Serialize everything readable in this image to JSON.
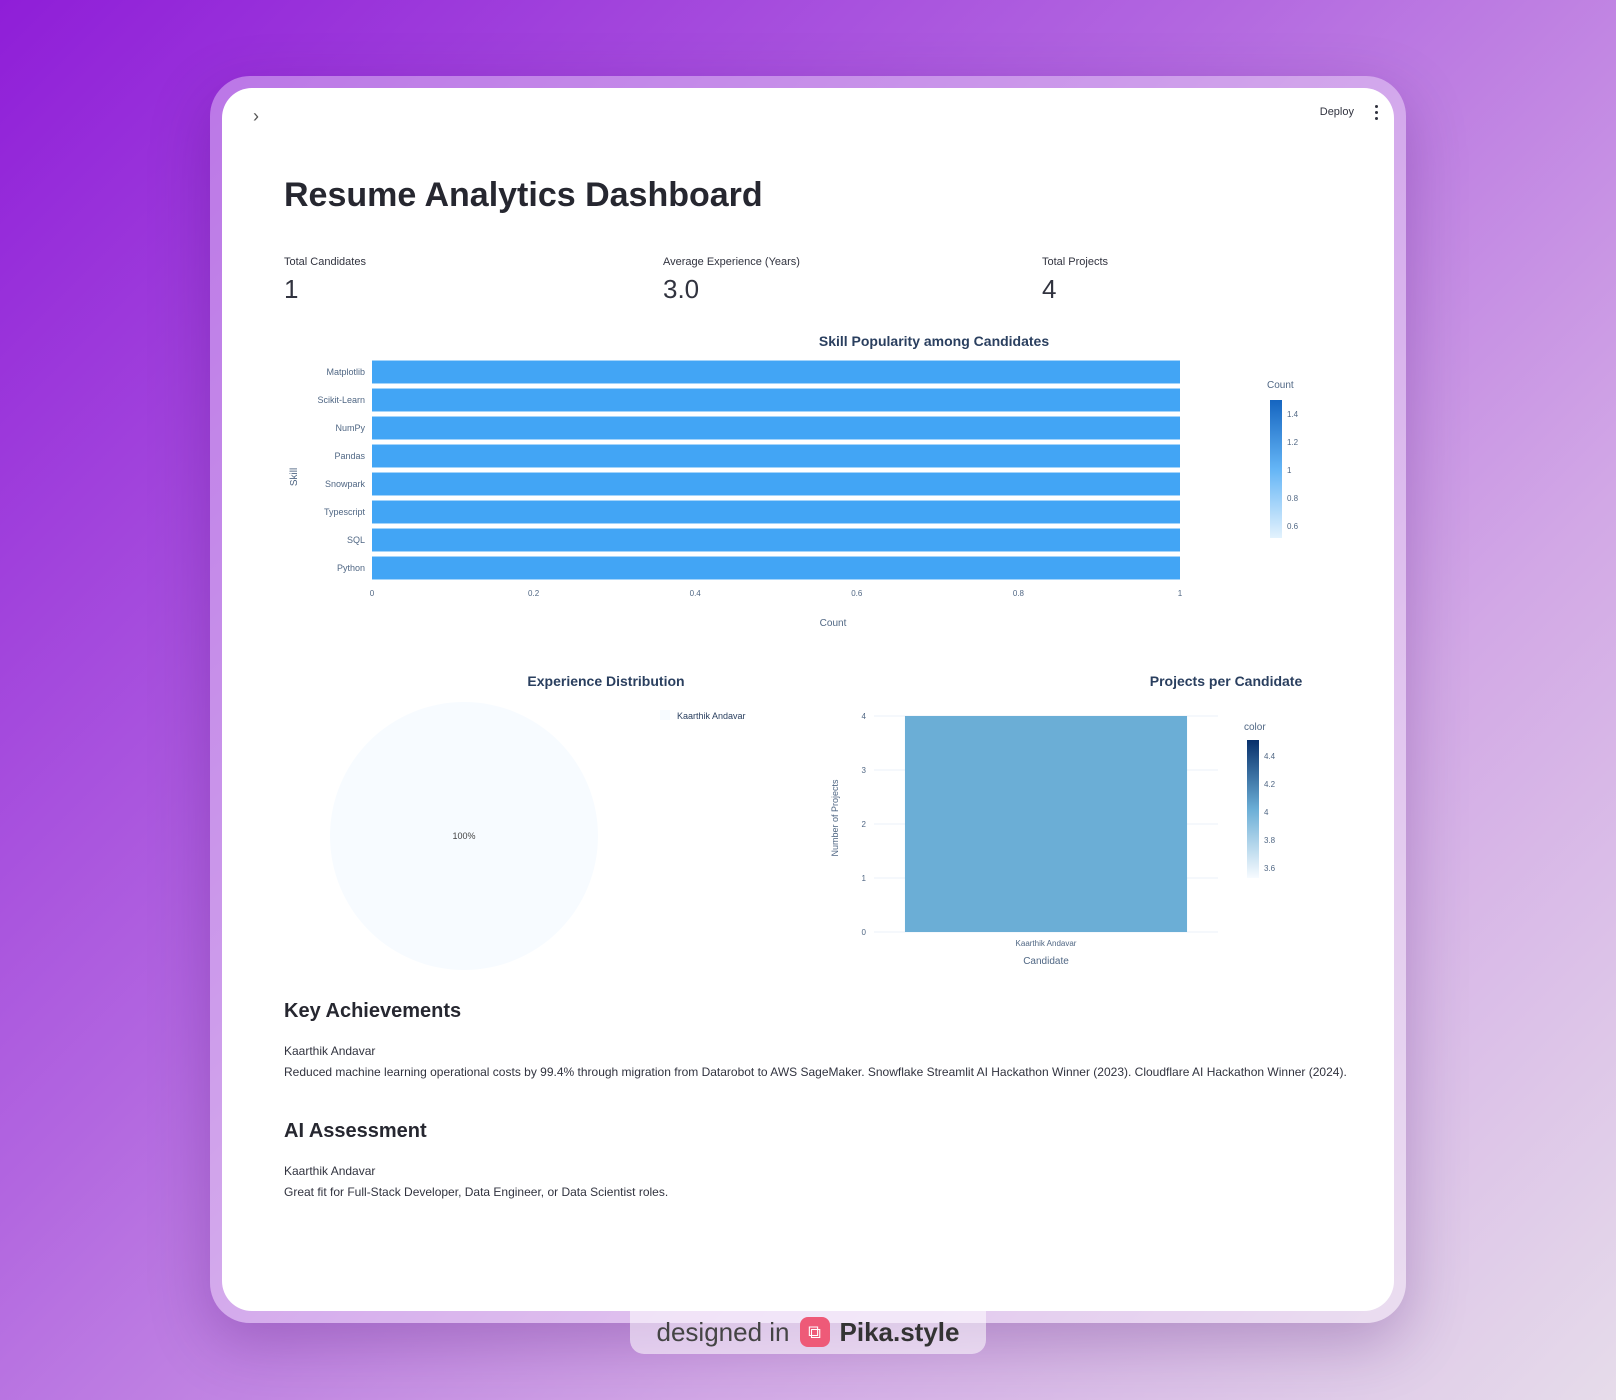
{
  "header": {
    "toggle_glyph": "›",
    "deploy_label": "Deploy",
    "menu_icon": "kebab-menu-icon"
  },
  "page": {
    "title": "Resume Analytics Dashboard"
  },
  "metrics": [
    {
      "label": "Total Candidates",
      "value": "1"
    },
    {
      "label": "Average Experience (Years)",
      "value": "3.0"
    },
    {
      "label": "Total Projects",
      "value": "4"
    }
  ],
  "skill_chart": {
    "title": "Skill Popularity among Candidates",
    "xlabel": "Count",
    "ylabel": "Skill",
    "colorbar_title": "Count",
    "colorbar_ticks": [
      "1.4",
      "1.2",
      "1",
      "0.8",
      "0.6"
    ],
    "x_ticks": [
      "0",
      "0.2",
      "0.4",
      "0.6",
      "0.8",
      "1"
    ]
  },
  "experience_chart": {
    "title": "Experience Distribution",
    "slice_label": "100%",
    "legend_label": "Kaarthik Andavar"
  },
  "projects_chart": {
    "title": "Projects per Candidate",
    "xlabel": "Candidate",
    "ylabel": "Number of Projects",
    "colorbar_title": "color",
    "colorbar_ticks": [
      "4.4",
      "4.2",
      "4",
      "3.8",
      "3.6"
    ],
    "y_ticks": [
      "4",
      "3",
      "2",
      "1",
      "0"
    ]
  },
  "chart_data": [
    {
      "type": "bar",
      "orientation": "horizontal",
      "title": "Skill Popularity among Candidates",
      "xlabel": "Count",
      "ylabel": "Skill",
      "categories": [
        "Matplotlib",
        "Scikit-Learn",
        "NumPy",
        "Pandas",
        "Snowpark",
        "Typescript",
        "SQL",
        "Python"
      ],
      "values": [
        1,
        1,
        1,
        1,
        1,
        1,
        1,
        1
      ],
      "xlim": [
        0,
        1
      ],
      "color": "#42a5f5"
    },
    {
      "type": "pie",
      "title": "Experience Distribution",
      "labels": [
        "Kaarthik Andavar"
      ],
      "values": [
        3.0
      ],
      "legend": "top-right",
      "color": "#f7fbff"
    },
    {
      "type": "bar",
      "title": "Projects per Candidate",
      "xlabel": "Candidate",
      "ylabel": "Number of Projects",
      "categories": [
        "Kaarthik Andavar"
      ],
      "values": [
        4
      ],
      "ylim": [
        0,
        4
      ],
      "color": "#6baed6"
    }
  ],
  "achievements": {
    "title": "Key Achievements",
    "name": "Kaarthik Andavar",
    "text": "Reduced machine learning operational costs by 99.4% through migration from Datarobot to AWS SageMaker. Snowflake Streamlit AI Hackathon Winner (2023). Cloudflare AI Hackathon Winner (2024)."
  },
  "assessment": {
    "title": "AI Assessment",
    "name": "Kaarthik Andavar",
    "text": "Great fit for Full-Stack Developer, Data Engineer, or Data Scientist roles."
  },
  "watermark": {
    "prefix": "designed in",
    "brand": "Pika.style",
    "logo_glyph": "⧉"
  }
}
